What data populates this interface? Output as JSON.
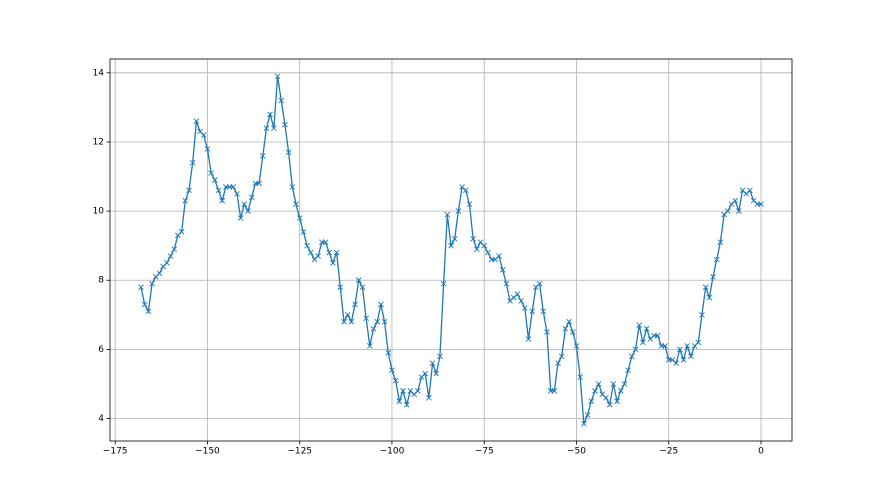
{
  "chart_data": {
    "type": "line",
    "x": [
      -168,
      -167,
      -166,
      -165,
      -164,
      -163,
      -162,
      -161,
      -160,
      -159,
      -158,
      -157,
      -156,
      -155,
      -154,
      -153,
      -152,
      -151,
      -150,
      -149,
      -148,
      -147,
      -146,
      -145,
      -144,
      -143,
      -142,
      -141,
      -140,
      -139,
      -138,
      -137,
      -136,
      -135,
      -134,
      -133,
      -132,
      -131,
      -130,
      -129,
      -128,
      -127,
      -126,
      -125,
      -124,
      -123,
      -122,
      -121,
      -120,
      -119,
      -118,
      -117,
      -116,
      -115,
      -114,
      -113,
      -112,
      -111,
      -110,
      -109,
      -108,
      -107,
      -106,
      -105,
      -104,
      -103,
      -102,
      -101,
      -100,
      -99,
      -98,
      -97,
      -96,
      -95,
      -94,
      -93,
      -92,
      -91,
      -90,
      -89,
      -88,
      -87,
      -86,
      -85,
      -84,
      -83,
      -82,
      -81,
      -80,
      -79,
      -78,
      -77,
      -76,
      -75,
      -74,
      -73,
      -72,
      -71,
      -70,
      -69,
      -68,
      -67,
      -66,
      -65,
      -64,
      -63,
      -62,
      -61,
      -60,
      -59,
      -58,
      -57,
      -56,
      -55,
      -54,
      -53,
      -52,
      -51,
      -50,
      -49,
      -48,
      -47,
      -46,
      -45,
      -44,
      -43,
      -42,
      -41,
      -40,
      -39,
      -38,
      -37,
      -36,
      -35,
      -34,
      -33,
      -32,
      -31,
      -30,
      -29,
      -28,
      -27,
      -26,
      -25,
      -24,
      -23,
      -22,
      -21,
      -20,
      -19,
      -18,
      -17,
      -16,
      -15,
      -14,
      -13,
      -12,
      -11,
      -10,
      -9,
      -8,
      -7,
      -6,
      -5,
      -4,
      -3,
      -2,
      -1,
      0
    ],
    "series": [
      {
        "color": "#1f77b4",
        "marker": "x",
        "values": [
          7.8,
          7.3,
          7.1,
          7.9,
          8.1,
          8.2,
          8.4,
          8.5,
          8.7,
          8.9,
          9.3,
          9.4,
          10.3,
          10.6,
          11.4,
          12.6,
          12.3,
          12.2,
          11.8,
          11.1,
          10.9,
          10.6,
          10.3,
          10.7,
          10.7,
          10.7,
          10.5,
          9.8,
          10.2,
          10.0,
          10.4,
          10.8,
          10.8,
          11.6,
          12.4,
          12.8,
          12.4,
          13.9,
          13.2,
          12.5,
          11.7,
          10.7,
          10.2,
          9.8,
          9.4,
          9.0,
          8.8,
          8.6,
          8.7,
          9.1,
          9.1,
          8.8,
          8.5,
          8.8,
          7.8,
          6.8,
          7.0,
          6.8,
          7.3,
          8.0,
          7.8,
          6.9,
          6.1,
          6.6,
          6.8,
          7.3,
          6.8,
          5.9,
          5.4,
          5.1,
          4.5,
          4.8,
          4.4,
          4.8,
          4.7,
          4.8,
          5.2,
          5.3,
          4.6,
          5.6,
          5.3,
          5.8,
          7.9,
          9.9,
          9.0,
          9.2,
          10.0,
          10.7,
          10.6,
          10.2,
          9.2,
          8.9,
          9.1,
          9.0,
          8.8,
          8.6,
          8.6,
          8.7,
          8.3,
          7.9,
          7.4,
          7.5,
          7.6,
          7.4,
          7.2,
          6.3,
          7.1,
          7.8,
          7.9,
          7.1,
          6.5,
          4.8,
          4.8,
          5.6,
          5.8,
          6.6,
          6.8,
          6.5,
          6.1,
          5.2,
          3.85,
          4.1,
          4.5,
          4.8,
          5.0,
          4.7,
          4.6,
          4.4,
          5.0,
          4.5,
          4.8,
          5.0,
          5.4,
          5.8,
          6.0,
          6.7,
          6.2,
          6.6,
          6.3,
          6.4,
          6.4,
          6.1,
          6.1,
          5.7,
          5.7,
          5.6,
          6.0,
          5.7,
          6.1,
          5.8,
          6.1,
          6.2,
          7.0,
          7.8,
          7.5,
          8.1,
          8.6,
          9.1,
          9.9,
          10.0,
          10.2,
          10.3,
          10.0,
          10.6,
          10.5,
          10.6,
          10.3,
          10.2,
          10.2
        ]
      }
    ],
    "xlim": [
      -176.4,
      8.4
    ],
    "xticks": [
      {
        "value": -175,
        "label": "−175"
      },
      {
        "value": -150,
        "label": "−150"
      },
      {
        "value": -125,
        "label": "−125"
      },
      {
        "value": -100,
        "label": "−100"
      },
      {
        "value": -75,
        "label": "−75"
      },
      {
        "value": -50,
        "label": "−50"
      },
      {
        "value": -25,
        "label": "−25"
      },
      0
    ],
    "ylim": [
      3.35,
      14.4
    ],
    "yticks": [
      4,
      6,
      8,
      10,
      12,
      14
    ],
    "grid": true
  }
}
